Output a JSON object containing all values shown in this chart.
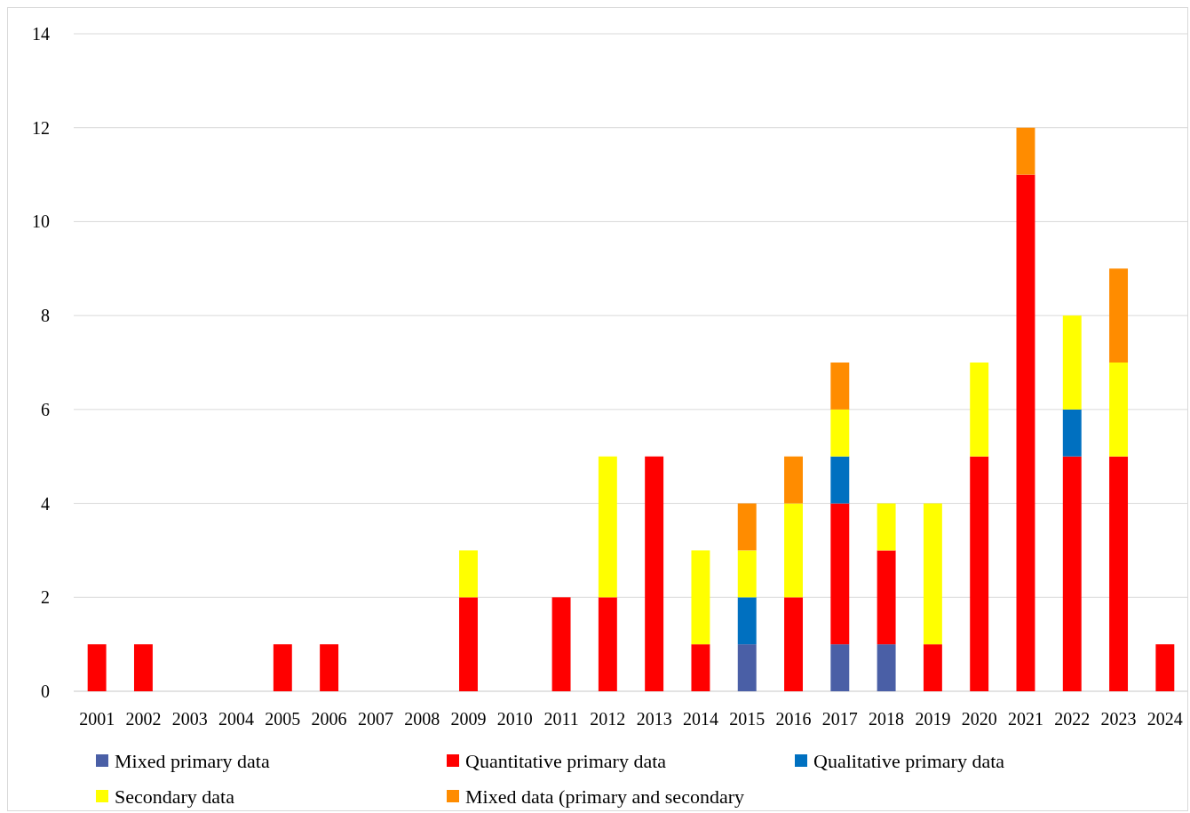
{
  "chart_data": {
    "type": "bar",
    "stacked": true,
    "categories": [
      "2001",
      "2002",
      "2003",
      "2004",
      "2005",
      "2006",
      "2007",
      "2008",
      "2009",
      "2010",
      "2011",
      "2012",
      "2013",
      "2014",
      "2015",
      "2016",
      "2017",
      "2018",
      "2019",
      "2020",
      "2021",
      "2022",
      "2023",
      "2024"
    ],
    "series": [
      {
        "name": "Mixed primary data",
        "color": "#4a5fa6",
        "values": [
          0,
          0,
          0,
          0,
          0,
          0,
          0,
          0,
          0,
          0,
          0,
          0,
          0,
          0,
          1,
          0,
          1,
          1,
          0,
          0,
          0,
          0,
          0,
          0
        ]
      },
      {
        "name": "Quantitative primary data",
        "color": "#ff0000",
        "values": [
          1,
          1,
          0,
          0,
          1,
          1,
          0,
          0,
          2,
          0,
          2,
          2,
          5,
          1,
          0,
          2,
          3,
          2,
          1,
          5,
          11,
          5,
          5,
          1
        ]
      },
      {
        "name": "Qualitative primary data",
        "color": "#0070c0",
        "values": [
          0,
          0,
          0,
          0,
          0,
          0,
          0,
          0,
          0,
          0,
          0,
          0,
          0,
          0,
          1,
          0,
          1,
          0,
          0,
          0,
          0,
          1,
          0,
          0
        ]
      },
      {
        "name": "Secondary data",
        "color": "#ffff00",
        "values": [
          0,
          0,
          0,
          0,
          0,
          0,
          0,
          0,
          1,
          0,
          0,
          3,
          0,
          2,
          1,
          2,
          1,
          1,
          3,
          2,
          0,
          2,
          2,
          0
        ]
      },
      {
        "name": "Mixed data (primary and secondary",
        "color": "#ff8c00",
        "values": [
          0,
          0,
          0,
          0,
          0,
          0,
          0,
          0,
          0,
          0,
          0,
          0,
          0,
          0,
          1,
          1,
          1,
          0,
          0,
          0,
          1,
          0,
          2,
          0
        ]
      }
    ],
    "ylim": [
      0,
      14
    ],
    "yticks": [
      0,
      2,
      4,
      6,
      8,
      10,
      12,
      14
    ],
    "grid": "y",
    "legend": "bottom"
  }
}
